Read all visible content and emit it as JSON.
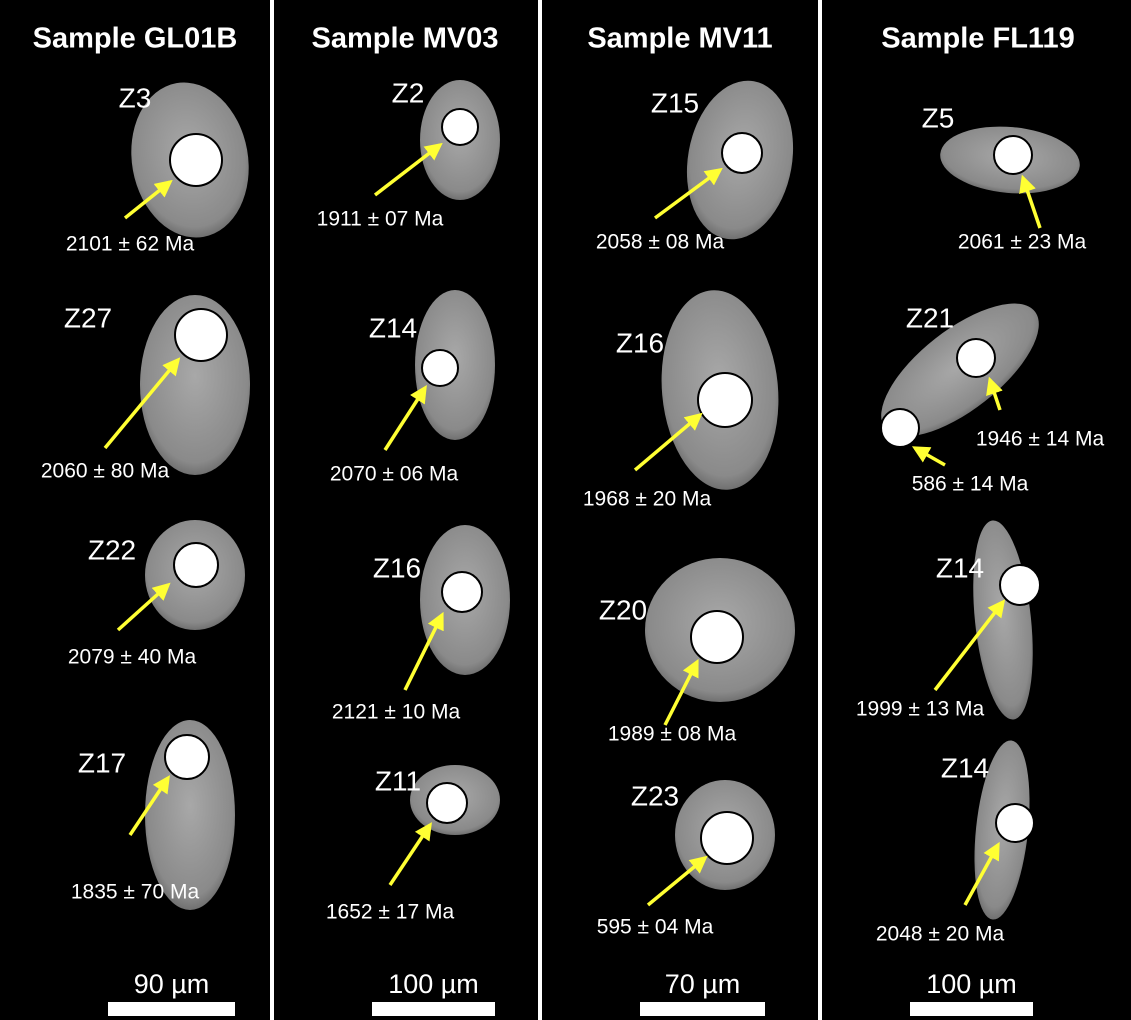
{
  "panels": [
    {
      "title": "Sample GL01B",
      "scale_bar": "90 µm",
      "grains": [
        {
          "label": "Z3",
          "ages": [
            "2101 ± 62 Ma"
          ]
        },
        {
          "label": "Z27",
          "ages": [
            "2060 ± 80 Ma"
          ]
        },
        {
          "label": "Z22",
          "ages": [
            "2079 ± 40 Ma"
          ]
        },
        {
          "label": "Z17",
          "ages": [
            "1835 ± 70 Ma"
          ]
        }
      ]
    },
    {
      "title": "Sample MV03",
      "scale_bar": "100 µm",
      "grains": [
        {
          "label": "Z2",
          "ages": [
            "1911 ± 07 Ma"
          ]
        },
        {
          "label": "Z14",
          "ages": [
            "2070 ± 06 Ma"
          ]
        },
        {
          "label": "Z16",
          "ages": [
            "2121 ± 10 Ma"
          ]
        },
        {
          "label": "Z11",
          "ages": [
            "1652 ± 17 Ma"
          ]
        }
      ]
    },
    {
      "title": "Sample MV11",
      "scale_bar": "70 µm",
      "grains": [
        {
          "label": "Z15",
          "ages": [
            "2058 ± 08 Ma"
          ]
        },
        {
          "label": "Z16",
          "ages": [
            "1968 ± 20 Ma"
          ]
        },
        {
          "label": "Z20",
          "ages": [
            "1989 ± 08 Ma"
          ]
        },
        {
          "label": "Z23",
          "ages": [
            "595 ± 04 Ma"
          ]
        }
      ]
    },
    {
      "title": "Sample FL119",
      "scale_bar": "100 µm",
      "grains": [
        {
          "label": "Z5",
          "ages": [
            "2061 ± 23 Ma"
          ]
        },
        {
          "label": "Z21",
          "ages": [
            "1946 ± 14 Ma",
            "586 ± 14 Ma"
          ]
        },
        {
          "label": "Z14",
          "ages": [
            "1999 ± 13 Ma"
          ]
        },
        {
          "label": "Z14",
          "ages": [
            "2048 ± 20 Ma"
          ]
        }
      ]
    }
  ]
}
